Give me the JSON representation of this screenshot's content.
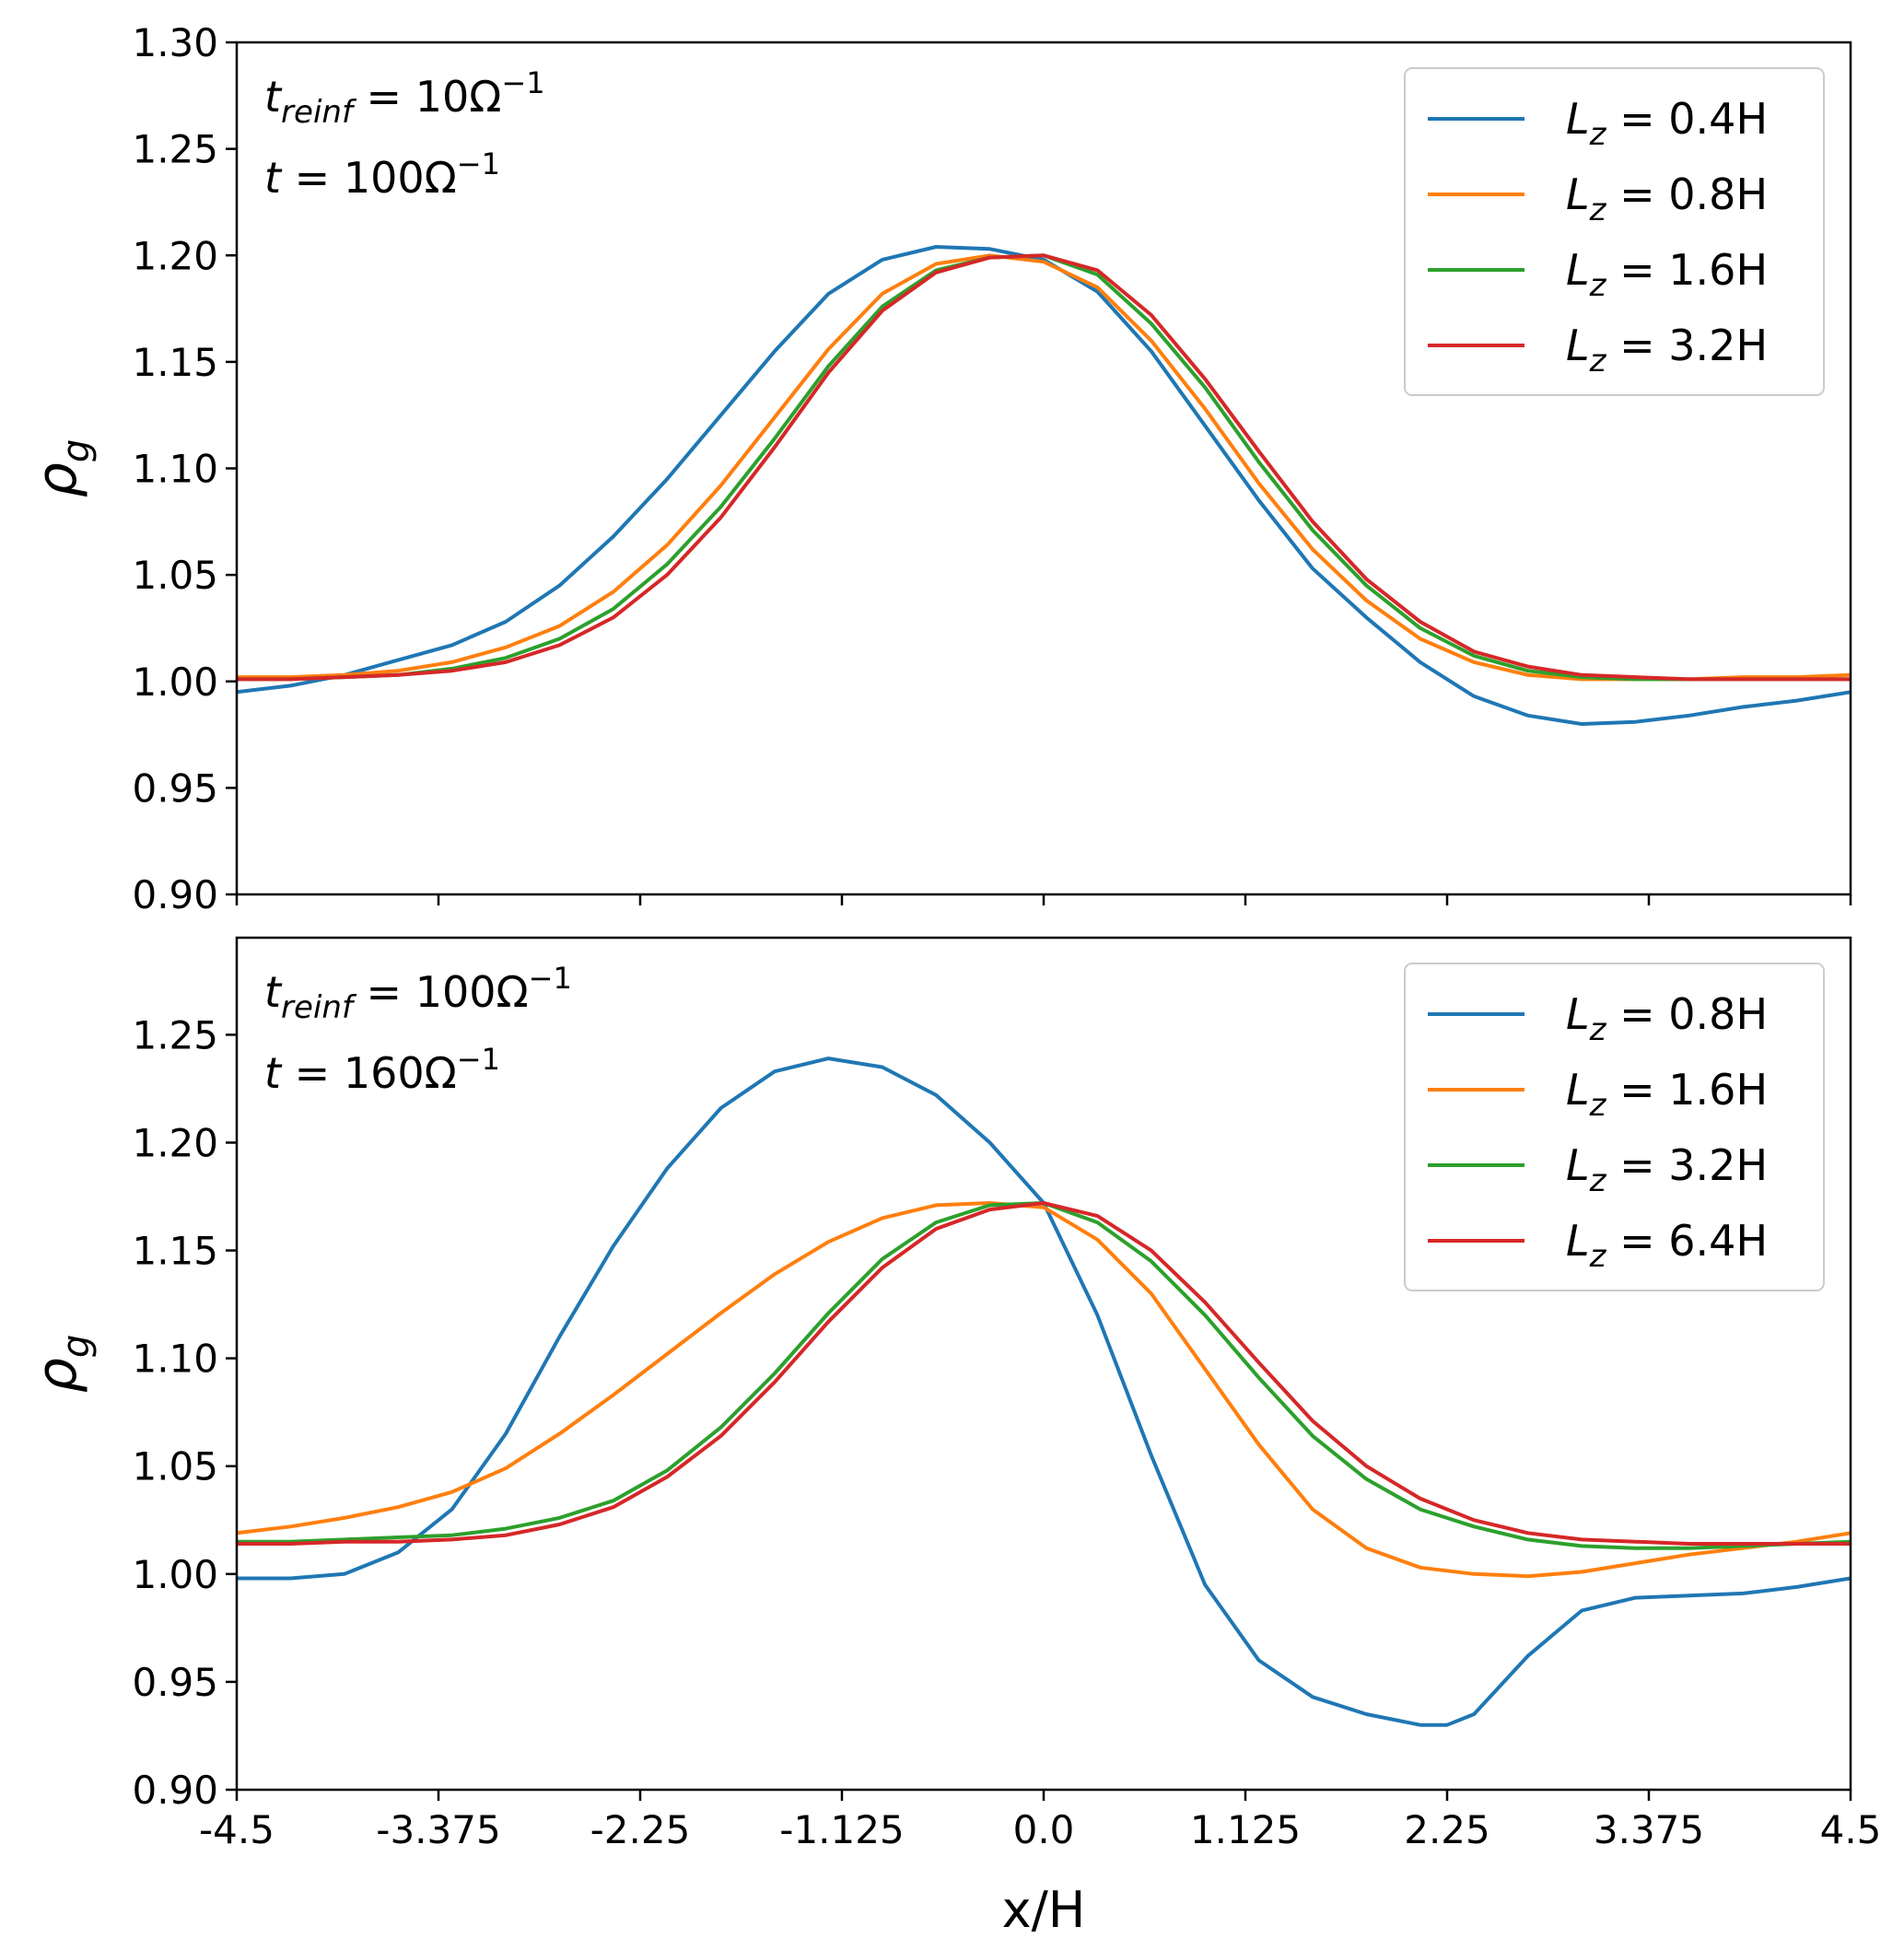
{
  "chart_data": [
    {
      "type": "line",
      "panel": "top",
      "xlabel": "",
      "ylabel": "ρ_g",
      "xlim": [
        -4.5,
        4.5
      ],
      "ylim": [
        0.9,
        1.3
      ],
      "xticks": [
        -4.5,
        -3.375,
        -2.25,
        -1.125,
        0.0,
        1.125,
        2.25,
        3.375,
        4.5
      ],
      "yticks": [
        "0.90",
        "0.95",
        "1.00",
        "1.05",
        "1.10",
        "1.15",
        "1.20",
        "1.25",
        "1.30"
      ],
      "show_x_tick_labels": false,
      "annotations": [
        {
          "var": "t",
          "sub": "reinf",
          "rhs": " = 10Ω",
          "sup": "−1"
        },
        {
          "var": "t",
          "sub": "",
          "rhs": " = 100Ω",
          "sup": "−1"
        }
      ],
      "legend_position": "top-right",
      "series": [
        {
          "name": "L_z = 0.4H",
          "var": "L",
          "sub": "z",
          "rhs": " = 0.4H",
          "color": "#1f77b4",
          "x": [
            -4.5,
            -4.2,
            -3.9,
            -3.6,
            -3.3,
            -3.0,
            -2.7,
            -2.4,
            -2.1,
            -1.8,
            -1.5,
            -1.2,
            -0.9,
            -0.6,
            -0.3,
            0.0,
            0.3,
            0.6,
            0.9,
            1.2,
            1.5,
            1.8,
            2.1,
            2.4,
            2.7,
            3.0,
            3.3,
            3.6,
            3.9,
            4.2,
            4.5
          ],
          "y": [
            0.995,
            0.998,
            1.003,
            1.01,
            1.017,
            1.028,
            1.045,
            1.068,
            1.095,
            1.125,
            1.155,
            1.182,
            1.198,
            1.204,
            1.203,
            1.198,
            1.183,
            1.155,
            1.12,
            1.085,
            1.053,
            1.03,
            1.009,
            0.993,
            0.984,
            0.98,
            0.981,
            0.984,
            0.988,
            0.991,
            0.995
          ]
        },
        {
          "name": "L_z = 0.8H",
          "var": "L",
          "sub": "z",
          "rhs": " = 0.8H",
          "color": "#ff7f0e",
          "x": [
            -4.5,
            -4.2,
            -3.9,
            -3.6,
            -3.3,
            -3.0,
            -2.7,
            -2.4,
            -2.1,
            -1.8,
            -1.5,
            -1.2,
            -0.9,
            -0.6,
            -0.3,
            0.0,
            0.3,
            0.6,
            0.9,
            1.2,
            1.5,
            1.8,
            2.1,
            2.4,
            2.7,
            3.0,
            3.3,
            3.6,
            3.9,
            4.2,
            4.5
          ],
          "y": [
            1.002,
            1.002,
            1.003,
            1.005,
            1.009,
            1.016,
            1.026,
            1.042,
            1.064,
            1.092,
            1.124,
            1.156,
            1.182,
            1.196,
            1.2,
            1.197,
            1.185,
            1.16,
            1.128,
            1.093,
            1.062,
            1.038,
            1.02,
            1.009,
            1.003,
            1.001,
            1.001,
            1.001,
            1.002,
            1.002,
            1.003
          ]
        },
        {
          "name": "L_z = 1.6H",
          "var": "L",
          "sub": "z",
          "rhs": " = 1.6H",
          "color": "#2ca02c",
          "x": [
            -4.5,
            -4.2,
            -3.9,
            -3.6,
            -3.3,
            -3.0,
            -2.7,
            -2.4,
            -2.1,
            -1.8,
            -1.5,
            -1.2,
            -0.9,
            -0.6,
            -0.3,
            0.0,
            0.3,
            0.6,
            0.9,
            1.2,
            1.5,
            1.8,
            2.1,
            2.4,
            2.7,
            3.0,
            3.3,
            3.6,
            3.9,
            4.2,
            4.5
          ],
          "y": [
            1.001,
            1.001,
            1.002,
            1.003,
            1.006,
            1.011,
            1.02,
            1.034,
            1.055,
            1.082,
            1.114,
            1.148,
            1.176,
            1.193,
            1.199,
            1.2,
            1.191,
            1.168,
            1.138,
            1.103,
            1.071,
            1.045,
            1.025,
            1.012,
            1.005,
            1.002,
            1.001,
            1.001,
            1.001,
            1.001,
            1.001
          ]
        },
        {
          "name": "L_z = 3.2H",
          "var": "L",
          "sub": "z",
          "rhs": " = 3.2H",
          "color": "#d62728",
          "x": [
            -4.5,
            -4.2,
            -3.9,
            -3.6,
            -3.3,
            -3.0,
            -2.7,
            -2.4,
            -2.1,
            -1.8,
            -1.5,
            -1.2,
            -0.9,
            -0.6,
            -0.3,
            0.0,
            0.3,
            0.6,
            0.9,
            1.2,
            1.5,
            1.8,
            2.1,
            2.4,
            2.7,
            3.0,
            3.3,
            3.6,
            3.9,
            4.2,
            4.5
          ],
          "y": [
            1.001,
            1.001,
            1.002,
            1.003,
            1.005,
            1.009,
            1.017,
            1.03,
            1.05,
            1.077,
            1.11,
            1.145,
            1.174,
            1.192,
            1.199,
            1.2,
            1.193,
            1.172,
            1.142,
            1.108,
            1.075,
            1.048,
            1.028,
            1.014,
            1.007,
            1.003,
            1.002,
            1.001,
            1.001,
            1.001,
            1.001
          ]
        }
      ]
    },
    {
      "type": "line",
      "panel": "bottom",
      "xlabel": "x/H",
      "ylabel": "ρ_g",
      "xlim": [
        -4.5,
        4.5
      ],
      "ylim": [
        0.9,
        1.3
      ],
      "xticks": [
        -4.5,
        -3.375,
        -2.25,
        -1.125,
        0.0,
        1.125,
        2.25,
        3.375,
        4.5
      ],
      "xtick_labels": [
        "-4.5",
        "-3.375",
        "-2.25",
        "-1.125",
        "0.0",
        "1.125",
        "2.25",
        "3.375",
        "4.5"
      ],
      "yticks": [
        "0.90",
        "0.95",
        "1.00",
        "1.05",
        "1.10",
        "1.15",
        "1.20",
        "1.25"
      ],
      "show_x_tick_labels": true,
      "annotations": [
        {
          "var": "t",
          "sub": "reinf",
          "rhs": " = 100Ω",
          "sup": "−1"
        },
        {
          "var": "t",
          "sub": "",
          "rhs": " = 160Ω",
          "sup": "−1"
        }
      ],
      "legend_position": "top-right",
      "series": [
        {
          "name": "L_z = 0.8H",
          "var": "L",
          "sub": "z",
          "rhs": " = 0.8H",
          "color": "#1f77b4",
          "x": [
            -4.5,
            -4.2,
            -3.9,
            -3.6,
            -3.3,
            -3.0,
            -2.7,
            -2.4,
            -2.1,
            -1.8,
            -1.5,
            -1.2,
            -0.9,
            -0.6,
            -0.3,
            0.0,
            0.3,
            0.6,
            0.9,
            1.2,
            1.5,
            1.8,
            2.1,
            2.25,
            2.4,
            2.7,
            3.0,
            3.3,
            3.6,
            3.9,
            4.2,
            4.5
          ],
          "y": [
            0.998,
            0.998,
            1.0,
            1.01,
            1.03,
            1.065,
            1.11,
            1.152,
            1.188,
            1.216,
            1.233,
            1.239,
            1.235,
            1.222,
            1.2,
            1.172,
            1.12,
            1.055,
            0.995,
            0.96,
            0.943,
            0.935,
            0.93,
            0.93,
            0.935,
            0.962,
            0.983,
            0.989,
            0.99,
            0.991,
            0.994,
            0.998
          ]
        },
        {
          "name": "L_z = 1.6H",
          "var": "L",
          "sub": "z",
          "rhs": " = 1.6H",
          "color": "#ff7f0e",
          "x": [
            -4.5,
            -4.2,
            -3.9,
            -3.6,
            -3.3,
            -3.0,
            -2.7,
            -2.4,
            -2.1,
            -1.8,
            -1.5,
            -1.2,
            -0.9,
            -0.6,
            -0.3,
            0.0,
            0.3,
            0.6,
            0.9,
            1.2,
            1.5,
            1.8,
            2.1,
            2.4,
            2.7,
            3.0,
            3.3,
            3.6,
            3.9,
            4.2,
            4.5
          ],
          "y": [
            1.019,
            1.022,
            1.026,
            1.031,
            1.038,
            1.049,
            1.065,
            1.083,
            1.102,
            1.121,
            1.139,
            1.154,
            1.165,
            1.171,
            1.172,
            1.17,
            1.155,
            1.13,
            1.095,
            1.06,
            1.03,
            1.012,
            1.003,
            1.0,
            0.999,
            1.001,
            1.005,
            1.009,
            1.012,
            1.015,
            1.019
          ]
        },
        {
          "name": "L_z = 3.2H",
          "var": "L",
          "sub": "z",
          "rhs": " = 3.2H",
          "color": "#2ca02c",
          "x": [
            -4.5,
            -4.2,
            -3.9,
            -3.6,
            -3.3,
            -3.0,
            -2.7,
            -2.4,
            -2.1,
            -1.8,
            -1.5,
            -1.2,
            -0.9,
            -0.6,
            -0.3,
            0.0,
            0.3,
            0.6,
            0.9,
            1.2,
            1.5,
            1.8,
            2.1,
            2.4,
            2.7,
            3.0,
            3.3,
            3.6,
            3.9,
            4.2,
            4.5
          ],
          "y": [
            1.015,
            1.015,
            1.016,
            1.017,
            1.018,
            1.021,
            1.026,
            1.034,
            1.048,
            1.068,
            1.093,
            1.121,
            1.146,
            1.163,
            1.171,
            1.172,
            1.163,
            1.145,
            1.12,
            1.091,
            1.064,
            1.044,
            1.03,
            1.022,
            1.016,
            1.013,
            1.012,
            1.012,
            1.013,
            1.014,
            1.015
          ]
        },
        {
          "name": "L_z = 6.4H",
          "var": "L",
          "sub": "z",
          "rhs": " = 6.4H",
          "color": "#d62728",
          "x": [
            -4.5,
            -4.2,
            -3.9,
            -3.6,
            -3.3,
            -3.0,
            -2.7,
            -2.4,
            -2.1,
            -1.8,
            -1.5,
            -1.2,
            -0.9,
            -0.6,
            -0.3,
            0.0,
            0.3,
            0.6,
            0.9,
            1.2,
            1.5,
            1.8,
            2.1,
            2.4,
            2.7,
            3.0,
            3.3,
            3.6,
            3.9,
            4.2,
            4.5
          ],
          "y": [
            1.014,
            1.014,
            1.015,
            1.015,
            1.016,
            1.018,
            1.023,
            1.031,
            1.045,
            1.064,
            1.089,
            1.117,
            1.142,
            1.16,
            1.169,
            1.172,
            1.166,
            1.15,
            1.126,
            1.098,
            1.071,
            1.05,
            1.035,
            1.025,
            1.019,
            1.016,
            1.015,
            1.014,
            1.014,
            1.014,
            1.014
          ]
        }
      ]
    }
  ]
}
